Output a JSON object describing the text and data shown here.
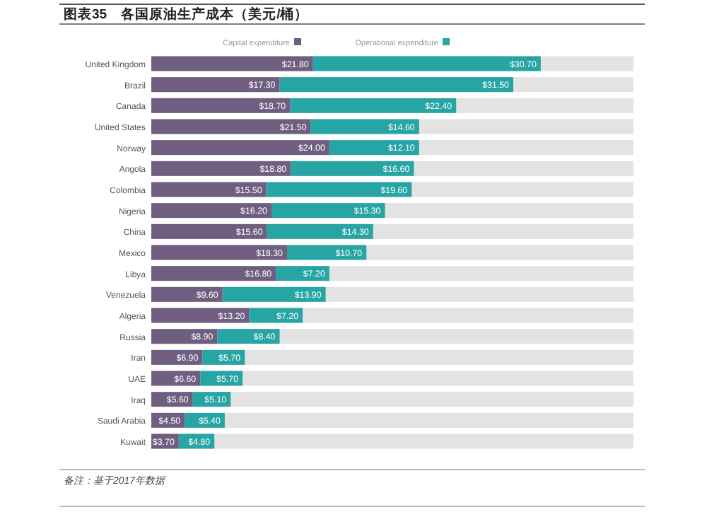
{
  "chart_data": {
    "type": "bar",
    "orientation": "horizontal",
    "stacked": true,
    "title": "图表35　各国原油生产成本（美元/桶）",
    "categories": [
      "United Kingdom",
      "Brazil",
      "Canada",
      "United States",
      "Norway",
      "Angola",
      "Colombia",
      "Nigeria",
      "China",
      "Mexico",
      "Libya",
      "Venezuela",
      "Algeria",
      "Russia",
      "Iran",
      "UAE",
      "Iraq",
      "Saudi Arabia",
      "Kuwait"
    ],
    "series": [
      {
        "name": "Capital expenditure",
        "color": "#6f5e80",
        "values": [
          21.8,
          17.3,
          18.7,
          21.5,
          24.0,
          18.8,
          15.5,
          16.2,
          15.6,
          18.3,
          16.8,
          9.6,
          13.2,
          8.9,
          6.9,
          6.6,
          5.6,
          4.5,
          3.7
        ],
        "value_labels": [
          "$21.80",
          "$17.30",
          "$18.70",
          "$21.50",
          "$24.00",
          "$18.80",
          "$15.50",
          "$16.20",
          "$15.60",
          "$18.30",
          "$16.80",
          "$9.60",
          "$13.20",
          "$8.90",
          "$6.90",
          "$6.60",
          "$5.60",
          "$4.50",
          "$3.70"
        ]
      },
      {
        "name": "Operational expenditure",
        "color": "#27a4a4",
        "values": [
          30.7,
          31.5,
          22.4,
          14.6,
          12.1,
          16.6,
          19.6,
          15.3,
          14.3,
          10.7,
          7.2,
          13.9,
          7.2,
          8.4,
          5.7,
          5.7,
          5.1,
          5.4,
          4.8
        ],
        "value_labels": [
          "$30.70",
          "$31.50",
          "$22.40",
          "$14.60",
          "$12.10",
          "$16.60",
          "$19.60",
          "$15.30",
          "$14.30",
          "$10.70",
          "$7.20",
          "$13.90",
          "$7.20",
          "$8.40",
          "$5.70",
          "$5.70",
          "$5.10",
          "$5.40",
          "$4.80"
        ]
      }
    ],
    "xlim": [
      0,
      65
    ],
    "legend": "top",
    "annotations": [
      "备注：基于2017年数据"
    ]
  }
}
